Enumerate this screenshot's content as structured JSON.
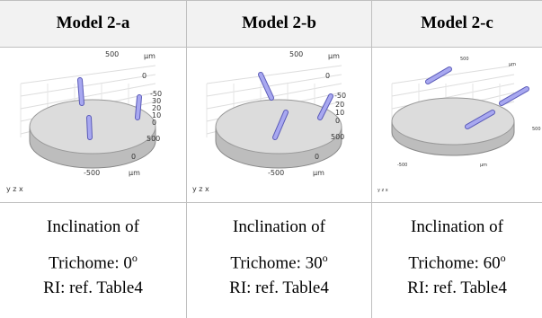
{
  "table": {
    "header": [
      "Model 2-a",
      "Model 2-b",
      "Model 2-c"
    ],
    "images": [
      {
        "labels": [
          "500",
          "µm",
          "0",
          "-50",
          "30",
          "20",
          "10",
          "0",
          "500",
          "0",
          "-500",
          "µm",
          "y z x"
        ]
      },
      {
        "labels": [
          "500",
          "µm",
          "0",
          "-50",
          "20",
          "10",
          "0",
          "500",
          "0",
          "-500",
          "µm",
          "y z x"
        ]
      },
      {
        "labels": [
          "500",
          "µm",
          "500",
          "-500",
          "µm",
          "y z x"
        ]
      }
    ],
    "cells": [
      {
        "line1": "Inclination of",
        "line2": "Trichome: 0",
        "sup": "o",
        "ri": "RI: ref. Table4"
      },
      {
        "line1": "Inclination of",
        "line2": "Trichome: 30",
        "sup": "o",
        "ri": "RI: ref. Table4"
      },
      {
        "line1": "Inclination of",
        "line2": "Trichome: 60",
        "sup": "o",
        "ri": "RI: ref. Table4"
      }
    ]
  }
}
